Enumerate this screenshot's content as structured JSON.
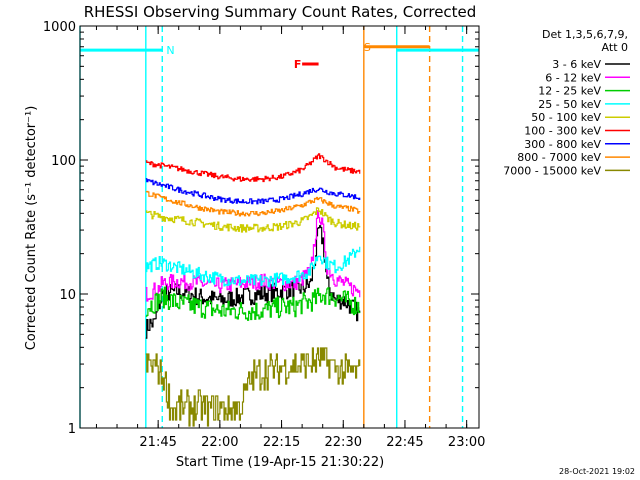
{
  "chart_data": {
    "type": "line",
    "title": "RHESSI Observing Summary Count Rates, Corrected",
    "xlabel": "Start Time (19-Apr-15 21:30:22)",
    "ylabel": "Corrected Count Rate (s⁻¹ detector⁻¹)",
    "y_scale": "log",
    "ylim": [
      1,
      1000
    ],
    "xlim_minutes_from_2130": [
      -4,
      93
    ],
    "y_ticks": [
      "1",
      "10",
      "100",
      "1000"
    ],
    "x_ticks": [
      {
        "label": "21:45",
        "minute": 15
      },
      {
        "label": "22:00",
        "minute": 30
      },
      {
        "label": "22:15",
        "minute": 45
      },
      {
        "label": "22:30",
        "minute": 60
      },
      {
        "label": "22:45",
        "minute": 75
      },
      {
        "label": "23:00",
        "minute": 90
      }
    ],
    "legend_header": [
      "Det 1,3,5,6,7,9,",
      "Att 0"
    ],
    "legend_position": "right",
    "footer_date": "28-Oct-2021 19:02",
    "series": [
      {
        "name": "3 - 6 keV",
        "color": "#000000",
        "x": [
          12,
          13,
          14,
          15,
          16,
          20,
          25,
          30,
          35,
          40,
          45,
          48,
          50,
          52,
          53,
          54,
          55,
          56,
          58,
          60,
          62,
          64
        ],
        "y": [
          5.5,
          6,
          6,
          8,
          10,
          10.5,
          9.5,
          9,
          9.5,
          10,
          10.5,
          11,
          11,
          12,
          18,
          30,
          25,
          12,
          9,
          9,
          8,
          7
        ]
      },
      {
        "name": "6 - 12 keV",
        "color": "#ff00ff",
        "x": [
          12,
          15,
          16,
          20,
          25,
          30,
          35,
          40,
          45,
          48,
          50,
          52,
          53,
          54,
          55,
          56,
          58,
          60,
          62,
          64
        ],
        "y": [
          10,
          11,
          12,
          12.5,
          12,
          11.5,
          12,
          12.5,
          12,
          12,
          13,
          15,
          25,
          42,
          30,
          16,
          13,
          12,
          11,
          10.5
        ]
      },
      {
        "name": "12 - 25 keV",
        "color": "#00cc00",
        "x": [
          12,
          15,
          16,
          20,
          25,
          30,
          35,
          40,
          45,
          48,
          50,
          53,
          55,
          58,
          60,
          62,
          64
        ],
        "y": [
          8,
          9,
          9.5,
          8.5,
          8,
          7.5,
          7.5,
          7.5,
          8,
          8,
          8.5,
          9,
          10,
          9.5,
          9,
          8.5,
          8
        ]
      },
      {
        "name": "25 - 50 keV",
        "color": "#00ffff",
        "x": [
          12,
          15,
          16,
          20,
          25,
          30,
          35,
          40,
          45,
          50,
          52,
          54,
          56,
          58,
          60,
          62,
          64
        ],
        "y": [
          16,
          17,
          17,
          15.5,
          14,
          13,
          12.5,
          12.5,
          13,
          14,
          15,
          20,
          17,
          16,
          17,
          19,
          23
        ]
      },
      {
        "name": "50 - 100 keV",
        "color": "#cccc00",
        "x": [
          12,
          15,
          20,
          25,
          30,
          35,
          40,
          45,
          50,
          52,
          54,
          56,
          58,
          60,
          62,
          64
        ],
        "y": [
          40,
          38,
          36,
          34,
          32,
          31,
          31,
          32,
          35,
          38,
          43,
          37,
          34,
          33,
          32,
          32
        ]
      },
      {
        "name": "100 - 300 keV",
        "color": "#ff0000",
        "x": [
          12,
          15,
          20,
          25,
          30,
          35,
          40,
          45,
          50,
          52,
          54,
          56,
          58,
          60,
          62,
          64
        ],
        "y": [
          95,
          92,
          86,
          80,
          75,
          72,
          72,
          75,
          85,
          95,
          108,
          98,
          88,
          85,
          83,
          82
        ]
      },
      {
        "name": "300 - 800 keV",
        "color": "#0000ff",
        "x": [
          12,
          15,
          20,
          25,
          30,
          35,
          40,
          45,
          50,
          52,
          54,
          56,
          58,
          60,
          62,
          64
        ],
        "y": [
          70,
          66,
          60,
          55,
          51,
          49,
          49,
          51,
          56,
          59,
          61,
          58,
          56,
          55,
          54,
          52
        ]
      },
      {
        "name": "800 - 7000 keV",
        "color": "#ff8800",
        "x": [
          12,
          15,
          20,
          25,
          30,
          35,
          40,
          45,
          50,
          52,
          54,
          56,
          58,
          60,
          62,
          64
        ],
        "y": [
          57,
          53,
          48,
          44,
          41,
          40,
          40,
          42,
          46,
          49,
          51,
          48,
          45,
          44,
          43,
          41
        ]
      },
      {
        "name": "7000 - 15000 keV",
        "color": "#888800",
        "x": [
          12,
          14,
          16,
          17,
          18,
          20,
          25,
          30,
          35,
          36,
          38,
          40,
          45,
          50,
          55,
          58,
          60,
          62,
          64
        ],
        "y": [
          3,
          3,
          2.5,
          2,
          1.4,
          1.4,
          1.4,
          1.4,
          1.4,
          1.8,
          2.4,
          2.6,
          2.8,
          3,
          3.2,
          2.8,
          2.6,
          2.6,
          2.6
        ]
      }
    ],
    "annotations": [
      {
        "label": "N",
        "color": "#00ffff",
        "x_minute": 17,
        "y": 660
      },
      {
        "label": "S",
        "color": "#ff8800",
        "x_minute": 65,
        "y": 700
      },
      {
        "label": "F",
        "color": "#ff0000",
        "x_minute": 48,
        "y": 520
      }
    ],
    "state_bars": [
      {
        "color": "#00ffff",
        "y": 660,
        "x_start": -4,
        "x_end": 16
      },
      {
        "color": "#00ffff",
        "y": 660,
        "x_start": 73,
        "x_end": 93
      },
      {
        "color": "#ff8800",
        "y": 700,
        "x_start": 65,
        "x_end": 81
      },
      {
        "color": "#ff0000",
        "y": 520,
        "x_start": 50,
        "x_end": 54
      }
    ],
    "vertical_lines": [
      {
        "color": "#00ffff",
        "x_minute": -4,
        "style": "solid"
      },
      {
        "color": "#00ffff",
        "x_minute": 12,
        "style": "solid"
      },
      {
        "color": "#00ffff",
        "x_minute": 16,
        "style": "dashed"
      },
      {
        "color": "#ff8800",
        "x_minute": 65,
        "style": "solid"
      },
      {
        "color": "#00ffff",
        "x_minute": 73,
        "style": "solid"
      },
      {
        "color": "#ff8800",
        "x_minute": 81,
        "style": "dashed"
      },
      {
        "color": "#00ffff",
        "x_minute": 89,
        "style": "dashed"
      }
    ]
  }
}
